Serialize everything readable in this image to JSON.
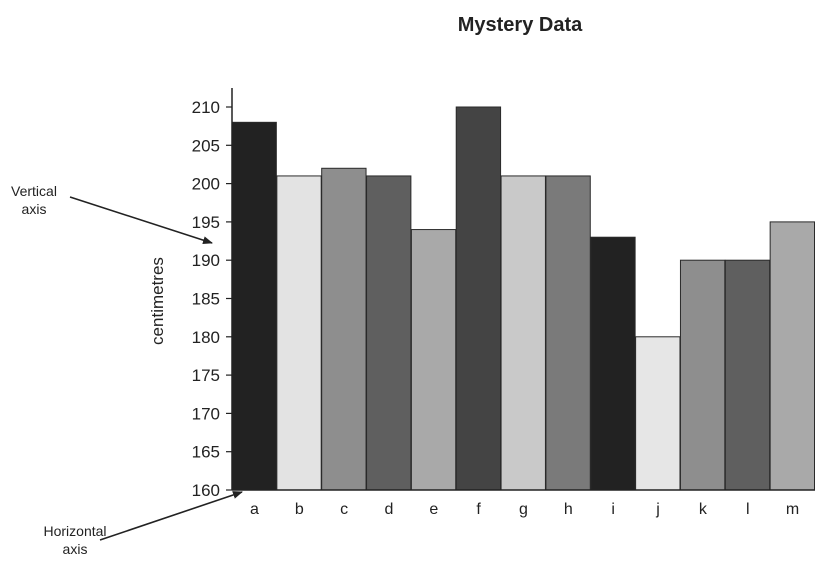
{
  "chart_data": {
    "type": "bar",
    "title": "Mystery Data",
    "xlabel": "",
    "ylabel": "centimetres",
    "categories": [
      "a",
      "b",
      "c",
      "d",
      "e",
      "f",
      "g",
      "h",
      "i",
      "j",
      "k",
      "l",
      "m"
    ],
    "values": [
      208,
      201,
      202,
      201,
      194,
      210,
      201,
      201,
      193,
      180,
      190,
      190,
      195
    ],
    "bar_colors": [
      "#222222",
      "#e3e3e3",
      "#8e8e8e",
      "#5f5f5f",
      "#a9a9a9",
      "#444444",
      "#c9c9c9",
      "#7a7a7a",
      "#222222",
      "#e6e6e6",
      "#8e8e8e",
      "#5f5f5f",
      "#a9a9a9"
    ],
    "ylim": [
      160,
      210
    ],
    "yticks": [
      160,
      165,
      170,
      175,
      180,
      185,
      190,
      195,
      200,
      205,
      210
    ],
    "grid": false,
    "legend": "none"
  },
  "annotations": {
    "vertical_axis": [
      "Vertical",
      "axis"
    ],
    "horizontal_axis": [
      "Horizontal",
      "axis"
    ]
  }
}
